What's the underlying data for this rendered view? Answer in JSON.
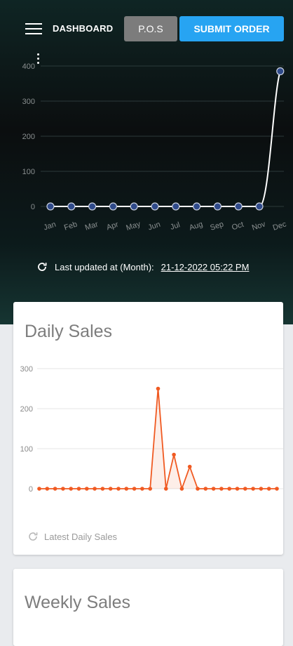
{
  "header": {
    "title": "DASHBOARD",
    "pos_label": "P.O.S",
    "submit_label": "SUBMIT ORDER",
    "menu_icon": "hamburger-menu-icon",
    "more_icon": "vertical-dots-icon"
  },
  "colors": {
    "accent": "#27a4f2",
    "pos_button": "#7c7c7c",
    "monthly_line": "#ffffff",
    "monthly_point": "#2f4a8a",
    "daily_line": "#f05a22"
  },
  "monthly_chart": {
    "chart_data": {
      "type": "line",
      "categories": [
        "Jan",
        "Feb",
        "Mar",
        "Apr",
        "May",
        "Jun",
        "Jul",
        "Aug",
        "Sep",
        "Oct",
        "Nov",
        "Dec"
      ],
      "values": [
        0,
        0,
        0,
        0,
        0,
        0,
        0,
        0,
        0,
        0,
        0,
        385
      ],
      "yticks": [
        "0",
        "100",
        "200",
        "300",
        "400"
      ],
      "ylim": [
        0,
        400
      ]
    }
  },
  "last_updated": {
    "label": "Last updated at (Month):",
    "value": "21-12-2022 05:22 PM",
    "icon": "refresh-icon"
  },
  "daily_sales": {
    "title": "Daily Sales",
    "footer": "Latest Daily Sales",
    "footer_icon": "refresh-icon",
    "chart_data": {
      "type": "line",
      "values": [
        0,
        0,
        0,
        0,
        0,
        0,
        0,
        0,
        0,
        0,
        0,
        0,
        0,
        0,
        0,
        250,
        0,
        85,
        0,
        55,
        0,
        0,
        0,
        0,
        0,
        0,
        0,
        0,
        0,
        0,
        0
      ],
      "yticks": [
        "0",
        "100",
        "200",
        "300"
      ],
      "ylim": [
        0,
        300
      ]
    }
  },
  "weekly_sales": {
    "title": "Weekly Sales"
  }
}
